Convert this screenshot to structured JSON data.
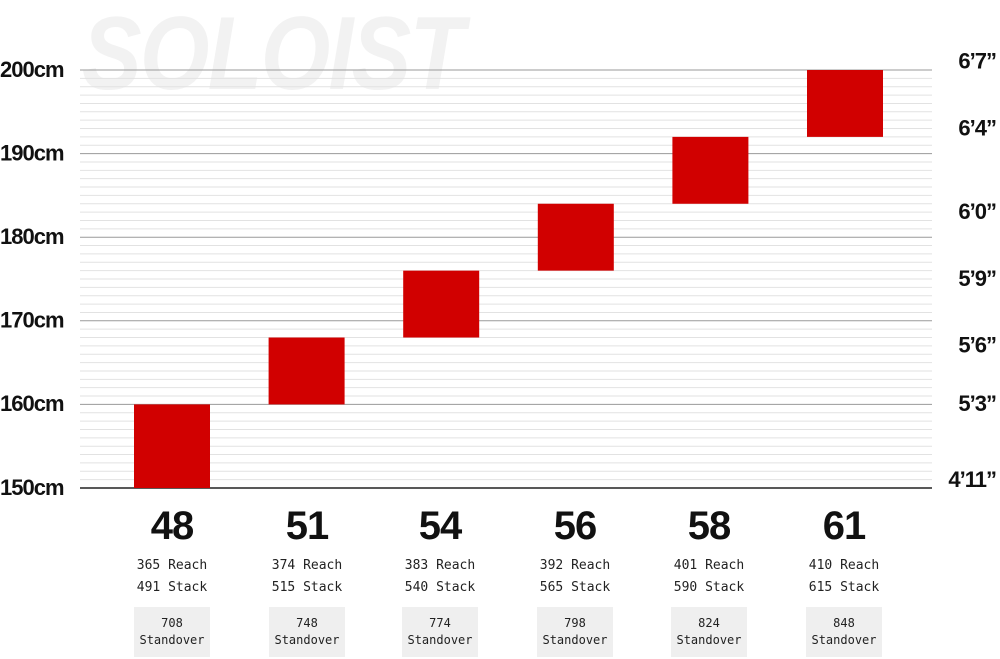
{
  "brand_watermark": "SOLOIST",
  "chart_data": {
    "type": "bar",
    "subtype": "floating-range",
    "title": "",
    "xlabel": "",
    "ylabel": "",
    "ylim": [
      150,
      200
    ],
    "y_unit": "cm",
    "left_ticks": [
      {
        "value": 150,
        "label": "150cm"
      },
      {
        "value": 160,
        "label": "160cm"
      },
      {
        "value": 170,
        "label": "170cm"
      },
      {
        "value": 180,
        "label": "180cm"
      },
      {
        "value": 190,
        "label": "190cm"
      },
      {
        "value": 200,
        "label": "200cm"
      }
    ],
    "right_ticks": [
      {
        "value": 150,
        "label": "4’11”"
      },
      {
        "value": 160,
        "label": "5’3”"
      },
      {
        "value": 167,
        "label": "5’6”"
      },
      {
        "value": 175,
        "label": "5’9”"
      },
      {
        "value": 183,
        "label": "6’0”"
      },
      {
        "value": 193,
        "label": "6’4”"
      },
      {
        "value": 201,
        "label": "6’7”"
      }
    ],
    "categories": [
      "48",
      "51",
      "54",
      "56",
      "58",
      "61"
    ],
    "ranges": [
      [
        150,
        160
      ],
      [
        160,
        168
      ],
      [
        168,
        176
      ],
      [
        176,
        184
      ],
      [
        184,
        192
      ],
      [
        192,
        200
      ]
    ],
    "bar_color": "#d10000",
    "grid": true
  },
  "sizes": [
    {
      "size": "48",
      "reach": "365 Reach",
      "stack": "491 Stack",
      "standover_value": "708",
      "standover_label": "Standover"
    },
    {
      "size": "51",
      "reach": "374 Reach",
      "stack": "515 Stack",
      "standover_value": "748",
      "standover_label": "Standover"
    },
    {
      "size": "54",
      "reach": "383 Reach",
      "stack": "540 Stack",
      "standover_value": "774",
      "standover_label": "Standover"
    },
    {
      "size": "56",
      "reach": "392 Reach",
      "stack": "565 Stack",
      "standover_value": "798",
      "standover_label": "Standover"
    },
    {
      "size": "58",
      "reach": "401 Reach",
      "stack": "590 Stack",
      "standover_value": "824",
      "standover_label": "Standover"
    },
    {
      "size": "61",
      "reach": "410 Reach",
      "stack": "615 Stack",
      "standover_value": "848",
      "standover_label": "Standover"
    }
  ]
}
